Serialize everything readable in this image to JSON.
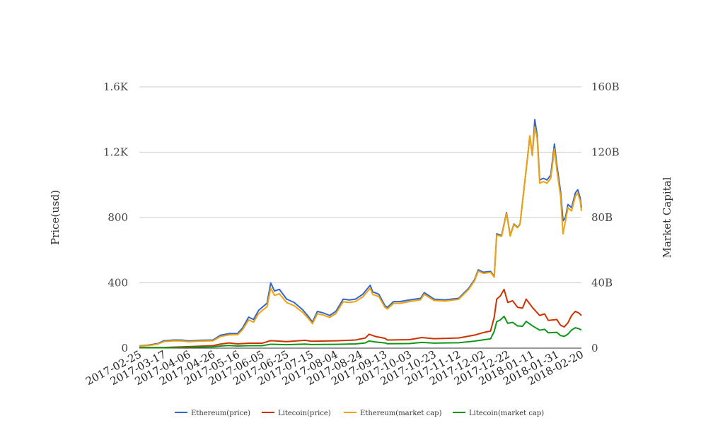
{
  "chart_data": {
    "type": "line",
    "title": "",
    "ylabel_left": "Price(usd)",
    "ylabel_right": "Market Capital",
    "left_axis": {
      "min": 0,
      "max": 1600,
      "ticks": [
        0,
        400,
        800,
        1200,
        1600
      ],
      "tick_labels": [
        "0",
        "400",
        "800",
        "1.2K",
        "1.6K"
      ]
    },
    "right_axis": {
      "min": 0,
      "max": 160,
      "ticks": [
        0,
        40,
        80,
        120,
        160
      ],
      "tick_labels": [
        "0",
        "40B",
        "80B",
        "120B",
        "160B"
      ]
    },
    "x_tick_labels": [
      "2017-02-25",
      "2017-03-17",
      "2017-04-06",
      "2017-04-26",
      "2017-05-16",
      "2017-06-05",
      "2017-06-25",
      "2017-07-15",
      "2017-08-04",
      "2017-08-24",
      "2017-09-13",
      "2017-10-03",
      "2017-10-23",
      "2017-11-12",
      "2017-12-02",
      "2017-12-22",
      "2018-01-11",
      "2018-01-31",
      "2018-02-20"
    ],
    "x_range": [
      "2017-02-25",
      "2018-02-20"
    ],
    "grid": true,
    "legend_position": "bottom",
    "series": [
      {
        "name": "Ethereum(price)",
        "axis": "left",
        "color": "#3366cc",
        "points": [
          [
            "2017-02-25",
            14
          ],
          [
            "2017-03-05",
            19
          ],
          [
            "2017-03-12",
            28
          ],
          [
            "2017-03-17",
            45
          ],
          [
            "2017-03-25",
            50
          ],
          [
            "2017-04-01",
            49
          ],
          [
            "2017-04-06",
            44
          ],
          [
            "2017-04-15",
            48
          ],
          [
            "2017-04-26",
            50
          ],
          [
            "2017-05-02",
            79
          ],
          [
            "2017-05-09",
            89
          ],
          [
            "2017-05-16",
            90
          ],
          [
            "2017-05-20",
            123
          ],
          [
            "2017-05-25",
            190
          ],
          [
            "2017-05-29",
            175
          ],
          [
            "2017-06-02",
            230
          ],
          [
            "2017-06-05",
            250
          ],
          [
            "2017-06-09",
            275
          ],
          [
            "2017-06-12",
            400
          ],
          [
            "2017-06-15",
            350
          ],
          [
            "2017-06-19",
            360
          ],
          [
            "2017-06-25",
            300
          ],
          [
            "2017-07-01",
            280
          ],
          [
            "2017-07-08",
            235
          ],
          [
            "2017-07-12",
            200
          ],
          [
            "2017-07-16",
            160
          ],
          [
            "2017-07-20",
            225
          ],
          [
            "2017-07-25",
            215
          ],
          [
            "2017-07-30",
            200
          ],
          [
            "2017-08-04",
            225
          ],
          [
            "2017-08-10",
            300
          ],
          [
            "2017-08-15",
            295
          ],
          [
            "2017-08-20",
            300
          ],
          [
            "2017-08-26",
            330
          ],
          [
            "2017-09-01",
            385
          ],
          [
            "2017-09-03",
            345
          ],
          [
            "2017-09-08",
            330
          ],
          [
            "2017-09-13",
            260
          ],
          [
            "2017-09-15",
            250
          ],
          [
            "2017-09-20",
            285
          ],
          [
            "2017-09-25",
            285
          ],
          [
            "2017-10-03",
            295
          ],
          [
            "2017-10-12",
            305
          ],
          [
            "2017-10-15",
            340
          ],
          [
            "2017-10-23",
            300
          ],
          [
            "2017-11-01",
            295
          ],
          [
            "2017-11-06",
            300
          ],
          [
            "2017-11-12",
            305
          ],
          [
            "2017-11-20",
            365
          ],
          [
            "2017-11-25",
            420
          ],
          [
            "2017-11-28",
            480
          ],
          [
            "2017-12-02",
            465
          ],
          [
            "2017-12-08",
            470
          ],
          [
            "2017-12-11",
            440
          ],
          [
            "2017-12-13",
            700
          ],
          [
            "2017-12-17",
            690
          ],
          [
            "2017-12-21",
            830
          ],
          [
            "2017-12-24",
            690
          ],
          [
            "2017-12-27",
            760
          ],
          [
            "2017-12-30",
            740
          ],
          [
            "2018-01-01",
            760
          ],
          [
            "2018-01-04",
            960
          ],
          [
            "2018-01-07",
            1160
          ],
          [
            "2018-01-09",
            1300
          ],
          [
            "2018-01-11",
            1180
          ],
          [
            "2018-01-13",
            1400
          ],
          [
            "2018-01-15",
            1300
          ],
          [
            "2018-01-17",
            1030
          ],
          [
            "2018-01-20",
            1040
          ],
          [
            "2018-01-23",
            1030
          ],
          [
            "2018-01-26",
            1060
          ],
          [
            "2018-01-29",
            1250
          ],
          [
            "2018-01-31",
            1120
          ],
          [
            "2018-02-03",
            960
          ],
          [
            "2018-02-05",
            780
          ],
          [
            "2018-02-07",
            800
          ],
          [
            "2018-02-09",
            880
          ],
          [
            "2018-02-12",
            860
          ],
          [
            "2018-02-15",
            950
          ],
          [
            "2018-02-17",
            970
          ],
          [
            "2018-02-19",
            920
          ],
          [
            "2018-02-20",
            860
          ]
        ]
      },
      {
        "name": "Litecoin(price)",
        "axis": "left",
        "color": "#cc3300",
        "points": [
          [
            "2017-02-25",
            4
          ],
          [
            "2017-03-17",
            4
          ],
          [
            "2017-04-06",
            9
          ],
          [
            "2017-04-26",
            15
          ],
          [
            "2017-05-02",
            25
          ],
          [
            "2017-05-09",
            32
          ],
          [
            "2017-05-16",
            26
          ],
          [
            "2017-05-25",
            30
          ],
          [
            "2017-06-05",
            30
          ],
          [
            "2017-06-12",
            46
          ],
          [
            "2017-06-25",
            40
          ],
          [
            "2017-07-10",
            48
          ],
          [
            "2017-07-15",
            42
          ],
          [
            "2017-08-04",
            45
          ],
          [
            "2017-08-20",
            50
          ],
          [
            "2017-08-28",
            62
          ],
          [
            "2017-08-31",
            85
          ],
          [
            "2017-09-05",
            72
          ],
          [
            "2017-09-13",
            60
          ],
          [
            "2017-09-15",
            50
          ],
          [
            "2017-10-03",
            52
          ],
          [
            "2017-10-13",
            65
          ],
          [
            "2017-10-23",
            58
          ],
          [
            "2017-11-12",
            62
          ],
          [
            "2017-11-25",
            80
          ],
          [
            "2017-12-02",
            95
          ],
          [
            "2017-12-08",
            105
          ],
          [
            "2017-12-11",
            190
          ],
          [
            "2017-12-13",
            300
          ],
          [
            "2017-12-16",
            320
          ],
          [
            "2017-12-19",
            360
          ],
          [
            "2017-12-22",
            280
          ],
          [
            "2017-12-26",
            290
          ],
          [
            "2017-12-30",
            250
          ],
          [
            "2018-01-03",
            245
          ],
          [
            "2018-01-06",
            300
          ],
          [
            "2018-01-11",
            250
          ],
          [
            "2018-01-17",
            200
          ],
          [
            "2018-01-21",
            210
          ],
          [
            "2018-01-24",
            170
          ],
          [
            "2018-01-31",
            175
          ],
          [
            "2018-02-03",
            140
          ],
          [
            "2018-02-06",
            130
          ],
          [
            "2018-02-09",
            155
          ],
          [
            "2018-02-12",
            200
          ],
          [
            "2018-02-15",
            225
          ],
          [
            "2018-02-18",
            215
          ],
          [
            "2018-02-20",
            200
          ]
        ]
      },
      {
        "name": "Ethereum(market cap)",
        "axis": "right",
        "color": "#f0a30a",
        "points": [
          [
            "2017-02-25",
            1.2
          ],
          [
            "2017-03-05",
            1.6
          ],
          [
            "2017-03-12",
            2.5
          ],
          [
            "2017-03-17",
            4
          ],
          [
            "2017-03-25",
            4.5
          ],
          [
            "2017-04-01",
            4.4
          ],
          [
            "2017-04-06",
            3.9
          ],
          [
            "2017-04-15",
            4.3
          ],
          [
            "2017-04-26",
            4.5
          ],
          [
            "2017-05-02",
            7.1
          ],
          [
            "2017-05-09",
            8.1
          ],
          [
            "2017-05-16",
            8.2
          ],
          [
            "2017-05-20",
            11.2
          ],
          [
            "2017-05-25",
            17.3
          ],
          [
            "2017-05-29",
            15.9
          ],
          [
            "2017-06-02",
            21.1
          ],
          [
            "2017-06-05",
            23
          ],
          [
            "2017-06-09",
            25.4
          ],
          [
            "2017-06-12",
            36.8
          ],
          [
            "2017-06-15",
            32.3
          ],
          [
            "2017-06-19",
            33.3
          ],
          [
            "2017-06-25",
            27.9
          ],
          [
            "2017-07-01",
            26
          ],
          [
            "2017-07-08",
            21.9
          ],
          [
            "2017-07-12",
            18.7
          ],
          [
            "2017-07-16",
            15
          ],
          [
            "2017-07-20",
            21.1
          ],
          [
            "2017-07-25",
            20.2
          ],
          [
            "2017-07-30",
            18.8
          ],
          [
            "2017-08-04",
            21.2
          ],
          [
            "2017-08-10",
            28.4
          ],
          [
            "2017-08-15",
            28
          ],
          [
            "2017-08-20",
            28.5
          ],
          [
            "2017-08-26",
            31.4
          ],
          [
            "2017-09-01",
            36.7
          ],
          [
            "2017-09-03",
            32.9
          ],
          [
            "2017-09-08",
            31.6
          ],
          [
            "2017-09-13",
            24.9
          ],
          [
            "2017-09-15",
            24
          ],
          [
            "2017-09-20",
            27.4
          ],
          [
            "2017-09-25",
            27.4
          ],
          [
            "2017-10-03",
            28.5
          ],
          [
            "2017-10-12",
            29.6
          ],
          [
            "2017-10-15",
            33
          ],
          [
            "2017-10-23",
            29.2
          ],
          [
            "2017-11-01",
            28.8
          ],
          [
            "2017-11-06",
            29.3
          ],
          [
            "2017-11-12",
            29.9
          ],
          [
            "2017-11-20",
            35.8
          ],
          [
            "2017-11-25",
            41.3
          ],
          [
            "2017-11-28",
            47.2
          ],
          [
            "2017-12-02",
            45.8
          ],
          [
            "2017-12-08",
            46.4
          ],
          [
            "2017-12-11",
            43.5
          ],
          [
            "2017-12-13",
            69.3
          ],
          [
            "2017-12-17",
            68.4
          ],
          [
            "2017-12-21",
            82.4
          ],
          [
            "2017-12-24",
            68.6
          ],
          [
            "2017-12-27",
            75.6
          ],
          [
            "2017-12-30",
            73.7
          ],
          [
            "2018-01-01",
            75.8
          ],
          [
            "2018-01-04",
            95.9
          ],
          [
            "2018-01-07",
            115.9
          ],
          [
            "2018-01-09",
            130
          ],
          [
            "2018-01-11",
            118
          ],
          [
            "2018-01-13",
            135.5
          ],
          [
            "2018-01-15",
            128
          ],
          [
            "2018-01-17",
            101
          ],
          [
            "2018-01-20",
            102
          ],
          [
            "2018-01-23",
            101
          ],
          [
            "2018-01-26",
            104
          ],
          [
            "2018-01-29",
            122
          ],
          [
            "2018-01-31",
            109
          ],
          [
            "2018-02-03",
            93
          ],
          [
            "2018-02-05",
            70
          ],
          [
            "2018-02-07",
            78
          ],
          [
            "2018-02-09",
            86
          ],
          [
            "2018-02-12",
            84
          ],
          [
            "2018-02-15",
            93
          ],
          [
            "2018-02-17",
            95
          ],
          [
            "2018-02-19",
            90
          ],
          [
            "2018-02-20",
            84
          ]
        ]
      },
      {
        "name": "Litecoin(market cap)",
        "axis": "right",
        "color": "#109618",
        "points": [
          [
            "2017-02-25",
            0.2
          ],
          [
            "2017-03-17",
            0.2
          ],
          [
            "2017-04-06",
            0.5
          ],
          [
            "2017-04-26",
            0.8
          ],
          [
            "2017-05-02",
            1.3
          ],
          [
            "2017-05-09",
            1.6
          ],
          [
            "2017-05-16",
            1.3
          ],
          [
            "2017-05-25",
            1.5
          ],
          [
            "2017-06-05",
            1.5
          ],
          [
            "2017-06-12",
            2.4
          ],
          [
            "2017-06-25",
            2.1
          ],
          [
            "2017-07-10",
            2.5
          ],
          [
            "2017-07-15",
            2.2
          ],
          [
            "2017-08-04",
            2.3
          ],
          [
            "2017-08-20",
            2.6
          ],
          [
            "2017-08-28",
            3.2
          ],
          [
            "2017-08-31",
            4.4
          ],
          [
            "2017-09-05",
            3.8
          ],
          [
            "2017-09-13",
            3.2
          ],
          [
            "2017-09-15",
            2.7
          ],
          [
            "2017-10-03",
            2.8
          ],
          [
            "2017-10-13",
            3.5
          ],
          [
            "2017-10-23",
            3.1
          ],
          [
            "2017-11-12",
            3.3
          ],
          [
            "2017-11-25",
            4.3
          ],
          [
            "2017-12-02",
            5.1
          ],
          [
            "2017-12-08",
            5.7
          ],
          [
            "2017-12-11",
            10.3
          ],
          [
            "2017-12-13",
            16.2
          ],
          [
            "2017-12-16",
            17.3
          ],
          [
            "2017-12-19",
            19.5
          ],
          [
            "2017-12-22",
            15.2
          ],
          [
            "2017-12-26",
            15.8
          ],
          [
            "2017-12-30",
            13.6
          ],
          [
            "2018-01-03",
            13.4
          ],
          [
            "2018-01-06",
            16.4
          ],
          [
            "2018-01-11",
            13.7
          ],
          [
            "2018-01-17",
            11
          ],
          [
            "2018-01-21",
            11.5
          ],
          [
            "2018-01-24",
            9.4
          ],
          [
            "2018-01-31",
            9.7
          ],
          [
            "2018-02-03",
            7.7
          ],
          [
            "2018-02-06",
            7.2
          ],
          [
            "2018-02-09",
            8.6
          ],
          [
            "2018-02-12",
            11.1
          ],
          [
            "2018-02-15",
            12.5
          ],
          [
            "2018-02-18",
            11.9
          ],
          [
            "2018-02-20",
            11.1
          ]
        ]
      }
    ]
  }
}
